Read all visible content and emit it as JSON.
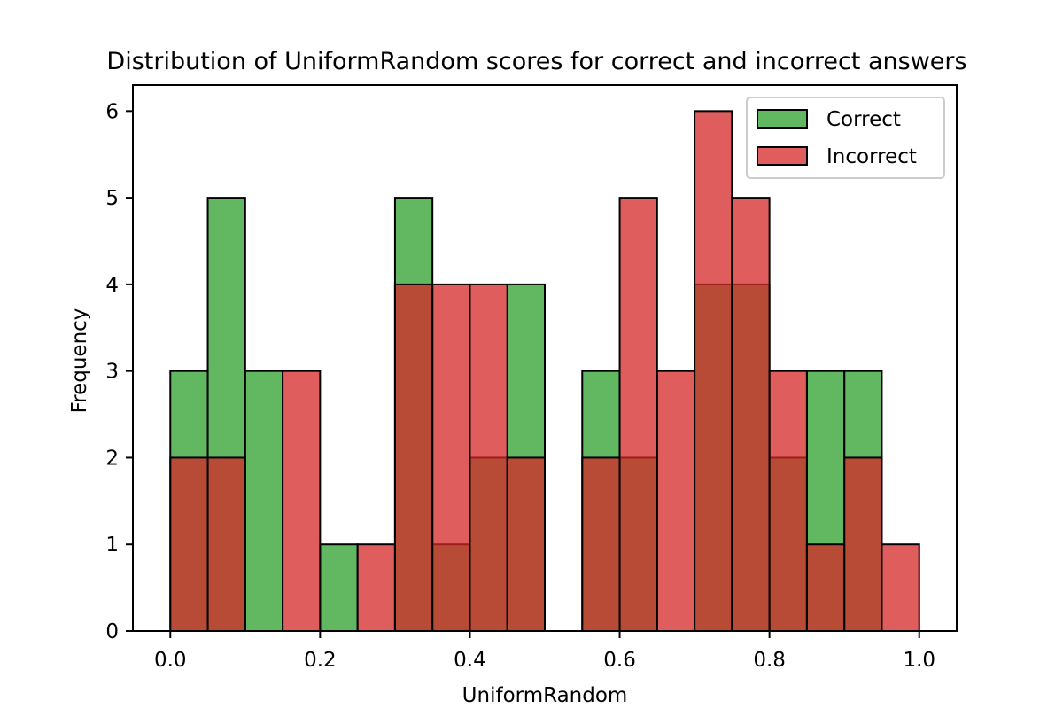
{
  "chart_data": {
    "type": "histogram",
    "title": "Distribution of UniformRandom scores for correct and incorrect answers",
    "xlabel": "UniformRandom",
    "ylabel": "Frequency",
    "xlim": [
      -0.05,
      1.05
    ],
    "ylim": [
      0,
      6.3
    ],
    "xticks": [
      "0.0",
      "0.2",
      "0.4",
      "0.6",
      "0.8",
      "1.0"
    ],
    "yticks": [
      "0",
      "1",
      "2",
      "3",
      "4",
      "5",
      "6"
    ],
    "bin_edges": [
      0.0,
      0.05,
      0.1,
      0.15,
      0.2,
      0.25,
      0.3,
      0.35,
      0.4,
      0.45,
      0.5,
      0.55,
      0.6,
      0.65,
      0.7,
      0.75,
      0.8,
      0.85,
      0.9,
      0.95,
      1.0
    ],
    "grid": false,
    "legend_position": "top-right",
    "series": [
      {
        "name": "Correct",
        "color": "#2ca02c",
        "values": [
          3,
          5,
          3,
          0,
          1,
          0,
          5,
          1,
          2,
          4,
          0,
          3,
          2,
          0,
          4,
          4,
          2,
          3,
          3,
          0
        ]
      },
      {
        "name": "Incorrect",
        "color": "#d62728",
        "values": [
          2,
          2,
          0,
          3,
          0,
          1,
          4,
          4,
          4,
          2,
          0,
          2,
          5,
          3,
          6,
          5,
          3,
          1,
          2,
          1
        ]
      }
    ]
  }
}
